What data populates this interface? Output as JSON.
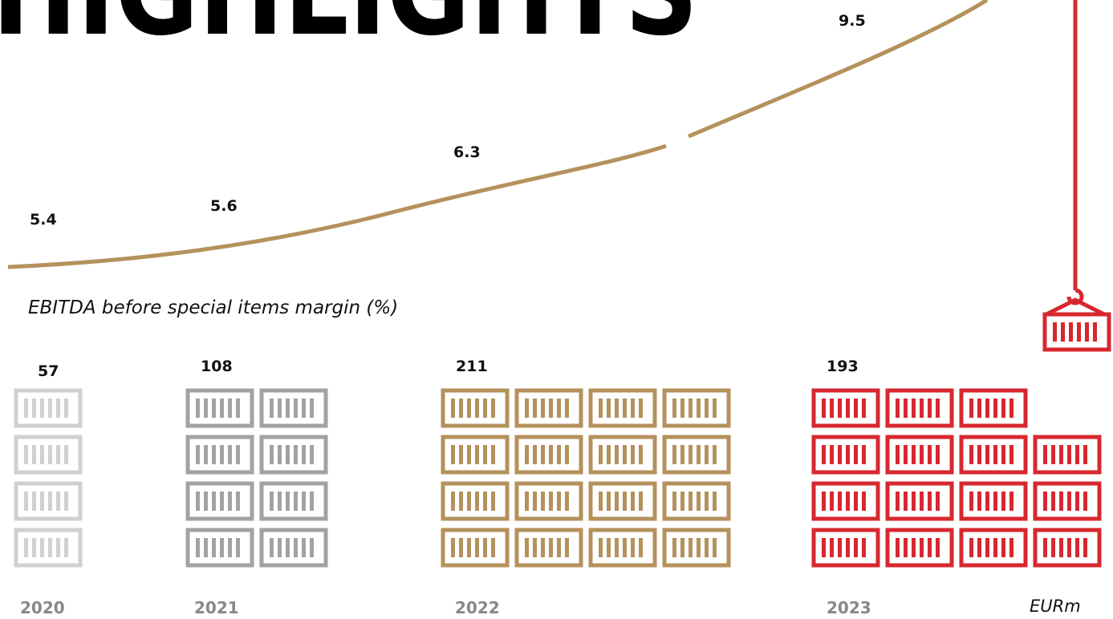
{
  "title": "HIGHLIGHTS",
  "margin": {
    "caption": "EBITDA before special items margin (%)",
    "values": [
      "5.4",
      "5.6",
      "6.3",
      "9.5"
    ]
  },
  "ebitda": {
    "unit": "EURm",
    "years": [
      {
        "year": "2020",
        "value": "57"
      },
      {
        "year": "2021",
        "value": "108"
      },
      {
        "year": "2022",
        "value": "211"
      },
      {
        "year": "2023",
        "value": "193"
      }
    ]
  }
}
